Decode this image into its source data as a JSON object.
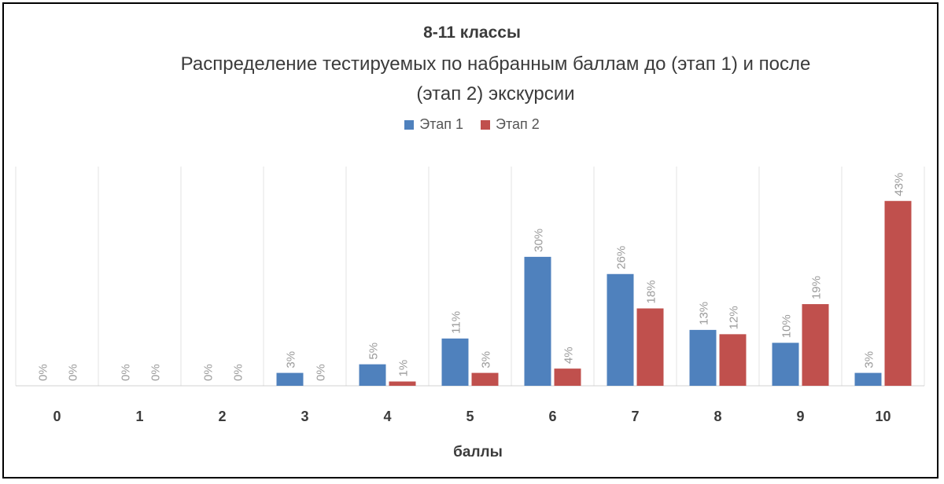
{
  "chart_data": {
    "type": "bar",
    "title": "8-11 классы",
    "subtitle_lines": [
      "Распределение тестируемых по набранным баллам до (этап 1) и после",
      "(этап 2) экскурсии"
    ],
    "xlabel": "баллы",
    "ylabel": "",
    "categories": [
      "0",
      "1",
      "2",
      "3",
      "4",
      "5",
      "6",
      "7",
      "8",
      "9",
      "10"
    ],
    "series": [
      {
        "name": "Этап 1",
        "color": "#4f81bd",
        "values": [
          0,
          0,
          0,
          3,
          5,
          11,
          30,
          26,
          13,
          10,
          3
        ],
        "labels": [
          "0%",
          "0%",
          "0%",
          "3%",
          "5%",
          "11%",
          "30%",
          "26%",
          "13%",
          "10%",
          "3%"
        ]
      },
      {
        "name": "Этап 2",
        "color": "#c0504d",
        "values": [
          0,
          0,
          0,
          0,
          1,
          3,
          4,
          18,
          12,
          19,
          43
        ],
        "labels": [
          "0%",
          "0%",
          "0%",
          "0%",
          "1%",
          "3%",
          "4%",
          "18%",
          "12%",
          "19%",
          "43%"
        ]
      }
    ],
    "ylim": [
      0,
      51
    ],
    "legend_position": "top",
    "grid": "vertical category separators"
  }
}
